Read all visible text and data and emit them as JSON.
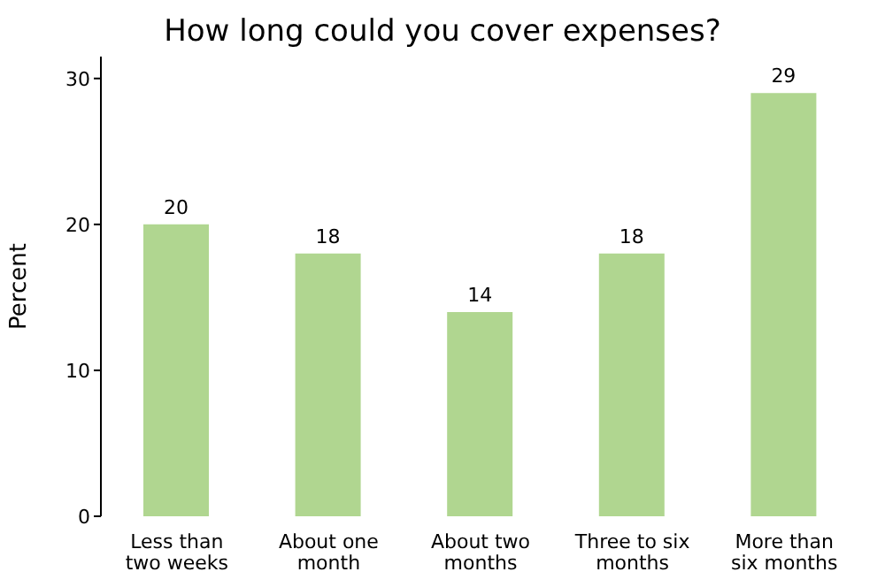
{
  "chart_data": {
    "type": "bar",
    "title": "How long could you cover expenses?",
    "ylabel": "Percent",
    "categories": [
      "Less than two weeks",
      "About one month",
      "About two months",
      "Three to six months",
      "More than six months"
    ],
    "values": [
      20,
      18,
      14,
      18,
      29
    ],
    "color": "#b0d690",
    "data_labels": true,
    "ylim": [
      0,
      31.5
    ],
    "yticks": [
      0,
      10,
      20,
      30
    ],
    "grid": false
  }
}
